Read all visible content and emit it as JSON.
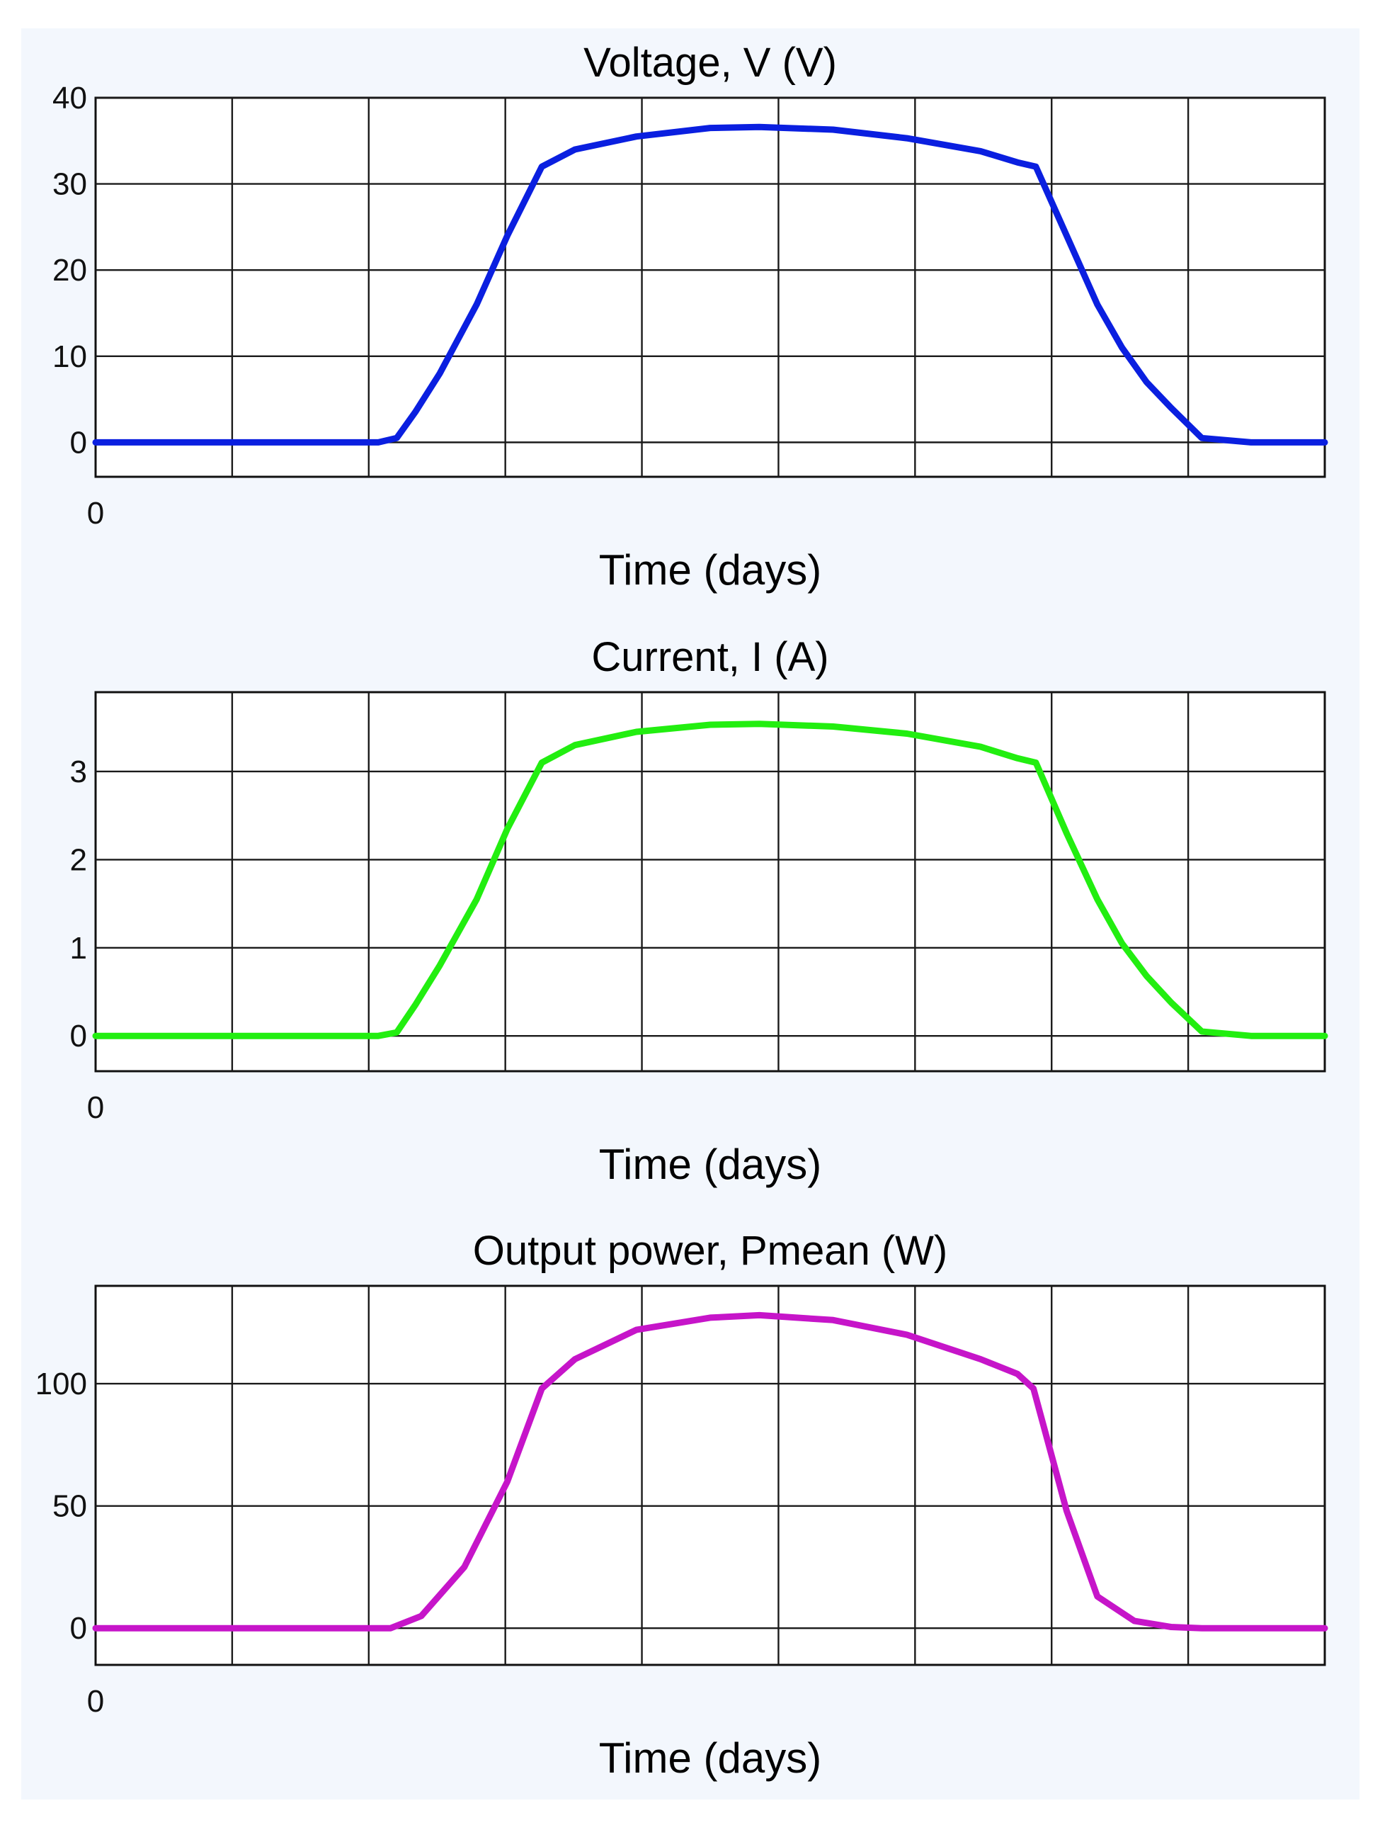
{
  "chart_data": [
    {
      "type": "line",
      "title": "Voltage, V (V)",
      "xlabel": "Time (days)",
      "ylabel": "",
      "x_tick_labels": [
        "0"
      ],
      "y_ticks": [
        0,
        10,
        20,
        30,
        40
      ],
      "ylim": [
        -4,
        40
      ],
      "xlim": [
        0,
        1
      ],
      "grid": true,
      "series": [
        {
          "color": "#0a1fe0",
          "x": [
            0,
            0.23,
            0.245,
            0.26,
            0.28,
            0.31,
            0.335,
            0.363,
            0.39,
            0.44,
            0.5,
            0.54,
            0.6,
            0.66,
            0.72,
            0.75,
            0.765,
            0.79,
            0.815,
            0.835,
            0.855,
            0.875,
            0.9,
            0.94,
            1.0
          ],
          "y": [
            0,
            0,
            0.5,
            3.5,
            8,
            16,
            24,
            32,
            34,
            35.5,
            36.5,
            36.6,
            36.3,
            35.3,
            33.8,
            32.5,
            32,
            24,
            16,
            11,
            7,
            4,
            0.5,
            0,
            0
          ]
        }
      ]
    },
    {
      "type": "line",
      "title": "Current, I (A)",
      "xlabel": "Time (days)",
      "ylabel": "",
      "x_tick_labels": [
        "0"
      ],
      "y_ticks": [
        0,
        1,
        2,
        3
      ],
      "ylim": [
        -0.4,
        3.9
      ],
      "xlim": [
        0,
        1
      ],
      "grid": true,
      "series": [
        {
          "color": "#22ee10",
          "x": [
            0,
            0.23,
            0.245,
            0.26,
            0.28,
            0.31,
            0.335,
            0.363,
            0.39,
            0.44,
            0.5,
            0.54,
            0.6,
            0.66,
            0.72,
            0.75,
            0.765,
            0.79,
            0.815,
            0.835,
            0.855,
            0.875,
            0.9,
            0.94,
            1.0
          ],
          "y": [
            0,
            0,
            0.04,
            0.35,
            0.8,
            1.55,
            2.35,
            3.1,
            3.3,
            3.45,
            3.53,
            3.54,
            3.51,
            3.43,
            3.28,
            3.15,
            3.1,
            2.3,
            1.55,
            1.05,
            0.68,
            0.38,
            0.05,
            0,
            0
          ]
        }
      ]
    },
    {
      "type": "line",
      "title": "Output power, Pmean (W)",
      "xlabel": "Time (days)",
      "ylabel": "",
      "x_tick_labels": [
        "0"
      ],
      "y_ticks": [
        0,
        50,
        100
      ],
      "ylim": [
        -15,
        140
      ],
      "xlim": [
        0,
        1
      ],
      "grid": true,
      "series": [
        {
          "color": "#c615c9",
          "x": [
            0,
            0.24,
            0.265,
            0.3,
            0.335,
            0.363,
            0.39,
            0.44,
            0.5,
            0.54,
            0.6,
            0.66,
            0.72,
            0.75,
            0.763,
            0.79,
            0.815,
            0.845,
            0.875,
            0.9,
            0.94,
            1.0
          ],
          "y": [
            0,
            0,
            5,
            25,
            60,
            98,
            110,
            122,
            127,
            128,
            126,
            120,
            110,
            104,
            98,
            48,
            13,
            3,
            0.5,
            0,
            0,
            0
          ]
        }
      ]
    }
  ]
}
